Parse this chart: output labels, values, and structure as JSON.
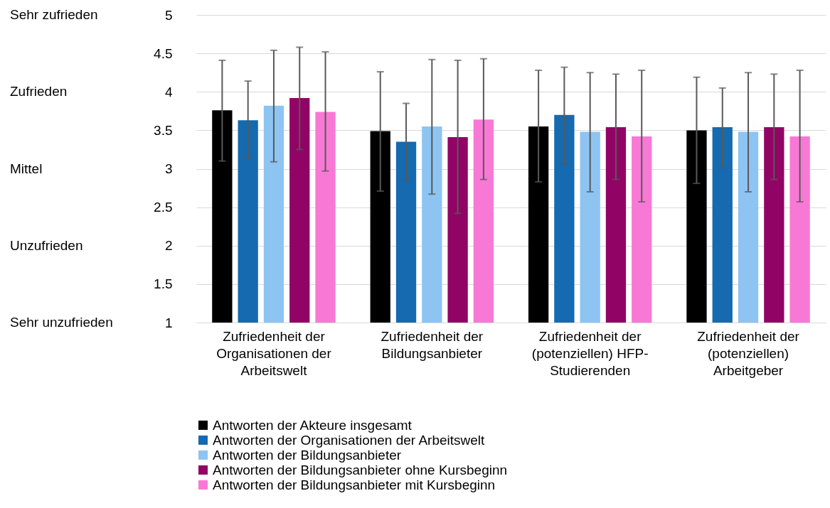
{
  "chart_data": {
    "type": "bar",
    "categories": [
      "Zufriedenheit der Organisationen der Arbeitswelt",
      "Zufriedenheit der Bildungsanbieter",
      "Zufriedenheit der (potenziellen) HFP-Studierenden",
      "Zufriedenheit der (potenziellen) Arbeitgeber"
    ],
    "series": [
      {
        "name": "Antworten der Akteure insgesamt",
        "color": "#000000",
        "values": [
          3.76,
          3.49,
          3.55,
          3.5
        ],
        "errors": [
          [
            3.1,
            4.41
          ],
          [
            2.71,
            4.26
          ],
          [
            2.83,
            4.28
          ],
          [
            2.81,
            4.19
          ]
        ]
      },
      {
        "name": "Antworten der Organisationen der Arbeitswelt",
        "color": "#156ab0",
        "values": [
          3.63,
          3.35,
          3.7,
          3.54
        ],
        "errors": [
          [
            3.14,
            4.14
          ],
          [
            2.85,
            3.85
          ],
          [
            3.06,
            4.32
          ],
          [
            3.02,
            4.05
          ]
        ]
      },
      {
        "name": "Antworten der Bildungsanbieter",
        "color": "#8dc4f2",
        "values": [
          3.82,
          3.55,
          3.48,
          3.48
        ],
        "errors": [
          [
            3.09,
            4.54
          ],
          [
            2.67,
            4.42
          ],
          [
            2.7,
            4.25
          ],
          [
            2.7,
            4.25
          ]
        ]
      },
      {
        "name": "Antworten der Bildungsanbieter ohne Kursbeginn",
        "color": "#910465",
        "values": [
          3.92,
          3.41,
          3.54,
          3.54
        ],
        "errors": [
          [
            3.25,
            4.58
          ],
          [
            2.42,
            4.41
          ],
          [
            2.86,
            4.23
          ],
          [
            2.86,
            4.23
          ]
        ]
      },
      {
        "name": "Antworten der Bildungsanbieter mit Kursbeginn",
        "color": "#f879d5",
        "values": [
          3.74,
          3.64,
          3.42,
          3.42
        ],
        "errors": [
          [
            2.97,
            4.52
          ],
          [
            2.86,
            4.43
          ],
          [
            2.57,
            4.28
          ],
          [
            2.57,
            4.28
          ]
        ]
      }
    ],
    "ylim": [
      1,
      5
    ],
    "yticks": [
      1,
      1.5,
      2,
      2.5,
      3,
      3.5,
      4,
      4.5,
      5
    ],
    "annotations": [
      "Sehr zufrieden",
      "Zufrieden",
      "Mittel",
      "Unzufrieden",
      "Sehr unzufrieden"
    ],
    "grid": "y",
    "legend": "bottom"
  }
}
